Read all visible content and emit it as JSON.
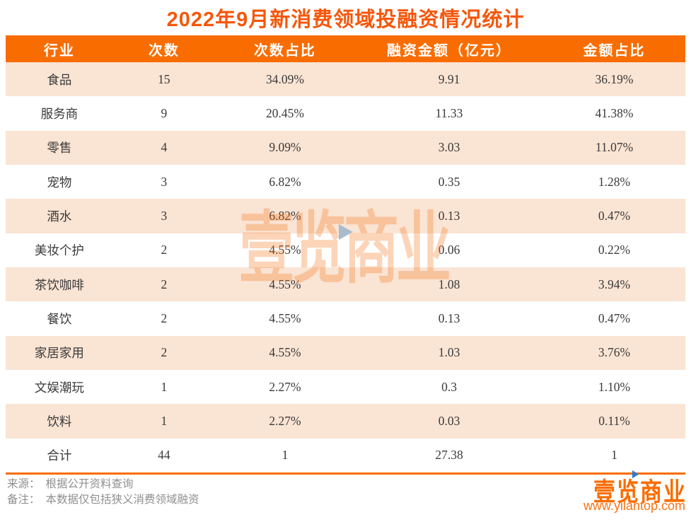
{
  "chart_data": {
    "type": "table",
    "title": "2022年9月新消费领域投融资情况统计",
    "columns": [
      "行业",
      "次数",
      "次数占比",
      "融资金额（亿元）",
      "金额占比"
    ],
    "rows": [
      [
        "食品",
        "15",
        "34.09%",
        "9.91",
        "36.19%"
      ],
      [
        "服务商",
        "9",
        "20.45%",
        "11.33",
        "41.38%"
      ],
      [
        "零售",
        "4",
        "9.09%",
        "3.03",
        "11.07%"
      ],
      [
        "宠物",
        "3",
        "6.82%",
        "0.35",
        "1.28%"
      ],
      [
        "酒水",
        "3",
        "6.82%",
        "0.13",
        "0.47%"
      ],
      [
        "美妆个护",
        "2",
        "4.55%",
        "0.06",
        "0.22%"
      ],
      [
        "茶饮咖啡",
        "2",
        "4.55%",
        "1.08",
        "3.94%"
      ],
      [
        "餐饮",
        "2",
        "4.55%",
        "0.13",
        "0.47%"
      ],
      [
        "家居家用",
        "2",
        "4.55%",
        "1.03",
        "3.76%"
      ],
      [
        "文娱潮玩",
        "1",
        "2.27%",
        "0.3",
        "1.10%"
      ],
      [
        "饮料",
        "1",
        "2.27%",
        "0.03",
        "0.11%"
      ],
      [
        "合计",
        "44",
        "1",
        "27.38",
        "1"
      ]
    ],
    "layout": {
      "striped": true,
      "stripe_color": "#FAE4D4",
      "header_color": "#F96D00"
    }
  },
  "footer": {
    "source_label": "来源：",
    "source_text": "根据公开资料查询",
    "note_label": "备注：",
    "note_text": "本数据仅包括狭义消费领域融资"
  },
  "branding": {
    "logo_text": "壹览商业",
    "website": "www.yilantop.com"
  },
  "watermark": {
    "text": "壹览商业"
  },
  "colors": {
    "header_orange": "#F96D00",
    "title_orange": "#F5570B",
    "row_peach": "#FAE4D4",
    "body_text": "#3A3A3A",
    "footer_gray": "#8F8F8F"
  }
}
